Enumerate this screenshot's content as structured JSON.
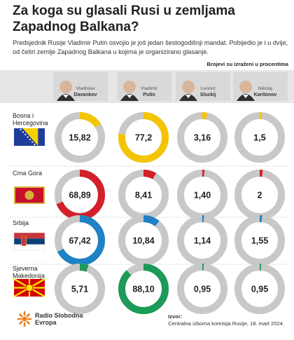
{
  "header": {
    "title": "Za koga su glasali Rusi u zemljama Zapadnog Balkana?",
    "subtitle": "Predsjednik Rusije Vladimir Putin osvojio je još jedan šestogodišnji mandat. Pobijedio je i u dvije, od četiri zemlje Zapadnog Balkana u kojima je organizirano glasanje.",
    "unit_note": "Brojevi su izraženi u procentima"
  },
  "footer": {
    "logo_line1": "Radio Slobodna",
    "logo_line2": "Evropa",
    "source_label": "Izvor:",
    "source_text": "Centralna izborna komisija Rusije, 18. mart 2024."
  },
  "colors": {
    "ring_background": "#c8c8c8",
    "bosna": "#f5c400",
    "crna_gora": "#d3202a",
    "srbija": "#1e82c4",
    "makedonija": "#1c9a57"
  },
  "chart_data": {
    "type": "donut-grid",
    "candidates": [
      {
        "first": "Vladislav",
        "last": "Davankov"
      },
      {
        "first": "Vladimir",
        "last": "Putin"
      },
      {
        "first": "Leonid",
        "last": "Sluckij"
      },
      {
        "first": "Nikolaj",
        "last": "Karitonov"
      }
    ],
    "countries": [
      {
        "name_lines": [
          "Bosna i",
          "Hercegovina"
        ],
        "color": "#f5c400",
        "flag": "flag-bosnia-icon",
        "values": [
          15.82,
          77.2,
          3.16,
          1.5
        ],
        "labels": [
          "15,82",
          "77,2",
          "3,16",
          "1,5"
        ]
      },
      {
        "name_lines": [
          "Crna Gora"
        ],
        "color": "#d3202a",
        "flag": "flag-montenegro-icon",
        "values": [
          68.89,
          8.41,
          1.4,
          2
        ],
        "labels": [
          "68,89",
          "8,41",
          "1,40",
          "2"
        ]
      },
      {
        "name_lines": [
          "Srbija"
        ],
        "color": "#1e82c4",
        "flag": "flag-serbia-icon",
        "values": [
          67.42,
          10.84,
          1.14,
          1.55
        ],
        "labels": [
          "67,42",
          "10,84",
          "1,14",
          "1,55"
        ]
      },
      {
        "name_lines": [
          "Sjeverna",
          "Makedonija"
        ],
        "color": "#1c9a57",
        "flag": "flag-north-macedonia-icon",
        "values": [
          5.71,
          88.1,
          0.95,
          0.95
        ],
        "labels": [
          "5,71",
          "88,10",
          "0,95",
          "0,95"
        ]
      }
    ]
  }
}
